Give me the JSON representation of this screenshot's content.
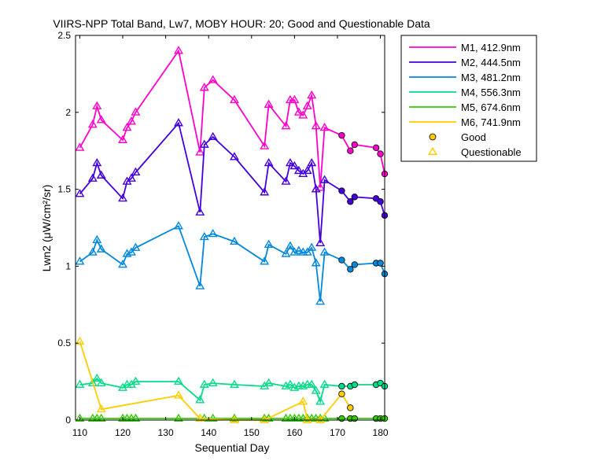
{
  "chart_data": {
    "type": "line",
    "title": "VIIRS-NPP Total Band, Lw7, MOBY HOUR: 20;  Good and Questionable Data",
    "xlabel": "Sequential Day",
    "ylabel": "Lwn2 (μW/cm²/sr)",
    "xlim": [
      109,
      181
    ],
    "ylim": [
      0,
      2.5
    ],
    "xticks": [
      110,
      120,
      130,
      140,
      150,
      160,
      170,
      180
    ],
    "yticks": [
      0,
      0.5,
      1,
      1.5,
      2,
      2.5
    ],
    "ytick_labels": [
      "0",
      "0.5",
      "1",
      "1.5",
      "2",
      "2.5"
    ],
    "grid": false,
    "legend": "outside-right",
    "marker_legend": [
      {
        "label": "Good",
        "marker": "circle"
      },
      {
        "label": "Questionable",
        "marker": "triangle"
      }
    ],
    "series": [
      {
        "name": "M1, 412.9nm",
        "color": "#ff00cc",
        "q": [
          [
            110,
            1.77
          ],
          [
            113,
            1.92
          ],
          [
            114,
            2.04
          ],
          [
            115,
            1.95
          ],
          [
            120,
            1.82
          ],
          [
            121,
            1.9
          ],
          [
            122,
            1.94
          ],
          [
            123,
            2.0
          ],
          [
            133,
            2.4
          ],
          [
            138,
            1.74
          ],
          [
            139,
            2.16
          ],
          [
            141,
            2.21
          ],
          [
            146,
            2.08
          ],
          [
            153,
            1.78
          ],
          [
            154,
            2.05
          ],
          [
            158,
            1.91
          ],
          [
            159,
            2.08
          ],
          [
            160,
            2.08
          ],
          [
            161,
            2.0
          ],
          [
            162,
            1.98
          ],
          [
            163,
            2.04
          ],
          [
            164,
            2.11
          ],
          [
            165,
            1.91
          ],
          [
            166,
            1.51
          ],
          [
            167,
            1.9
          ]
        ],
        "g": [
          [
            171,
            1.85
          ],
          [
            173,
            1.75
          ],
          [
            174,
            1.79
          ],
          [
            179,
            1.77
          ],
          [
            180,
            1.73
          ],
          [
            181,
            1.6
          ]
        ]
      },
      {
        "name": "M2, 444.5nm",
        "color": "#4400dd",
        "q": [
          [
            110,
            1.47
          ],
          [
            113,
            1.57
          ],
          [
            114,
            1.67
          ],
          [
            115,
            1.59
          ],
          [
            120,
            1.44
          ],
          [
            121,
            1.55
          ],
          [
            122,
            1.57
          ],
          [
            123,
            1.61
          ],
          [
            133,
            1.93
          ],
          [
            138,
            1.35
          ],
          [
            139,
            1.79
          ],
          [
            141,
            1.84
          ],
          [
            146,
            1.71
          ],
          [
            153,
            1.48
          ],
          [
            154,
            1.67
          ],
          [
            158,
            1.55
          ],
          [
            159,
            1.67
          ],
          [
            160,
            1.65
          ],
          [
            161,
            1.62
          ],
          [
            162,
            1.6
          ],
          [
            163,
            1.62
          ],
          [
            164,
            1.67
          ],
          [
            165,
            1.5
          ],
          [
            166,
            1.15
          ],
          [
            167,
            1.56
          ]
        ],
        "g": [
          [
            171,
            1.49
          ],
          [
            173,
            1.42
          ],
          [
            174,
            1.45
          ],
          [
            179,
            1.44
          ],
          [
            180,
            1.42
          ],
          [
            181,
            1.33
          ]
        ]
      },
      {
        "name": "M3, 481.2nm",
        "color": "#0088dd",
        "q": [
          [
            110,
            1.03
          ],
          [
            113,
            1.09
          ],
          [
            114,
            1.17
          ],
          [
            115,
            1.11
          ],
          [
            120,
            1.01
          ],
          [
            121,
            1.08
          ],
          [
            122,
            1.09
          ],
          [
            123,
            1.12
          ],
          [
            133,
            1.26
          ],
          [
            138,
            0.87
          ],
          [
            139,
            1.19
          ],
          [
            141,
            1.21
          ],
          [
            146,
            1.16
          ],
          [
            153,
            1.03
          ],
          [
            154,
            1.14
          ],
          [
            158,
            1.08
          ],
          [
            159,
            1.13
          ],
          [
            160,
            1.09
          ],
          [
            161,
            1.1
          ],
          [
            162,
            1.09
          ],
          [
            163,
            1.09
          ],
          [
            164,
            1.12
          ],
          [
            165,
            1.02
          ],
          [
            166,
            0.77
          ],
          [
            167,
            1.09
          ]
        ],
        "g": [
          [
            171,
            1.04
          ],
          [
            173,
            0.98
          ],
          [
            174,
            1.01
          ],
          [
            179,
            1.02
          ],
          [
            180,
            1.02
          ],
          [
            181,
            0.95
          ]
        ]
      },
      {
        "name": "M4, 556.3nm",
        "color": "#00dd88",
        "q": [
          [
            110,
            0.23
          ],
          [
            113,
            0.24
          ],
          [
            114,
            0.27
          ],
          [
            115,
            0.24
          ],
          [
            120,
            0.21
          ],
          [
            121,
            0.23
          ],
          [
            122,
            0.23
          ],
          [
            123,
            0.25
          ],
          [
            133,
            0.25
          ],
          [
            138,
            0.13
          ],
          [
            139,
            0.23
          ],
          [
            141,
            0.24
          ],
          [
            146,
            0.23
          ],
          [
            153,
            0.22
          ],
          [
            154,
            0.24
          ],
          [
            158,
            0.22
          ],
          [
            159,
            0.23
          ],
          [
            160,
            0.21
          ],
          [
            161,
            0.22
          ],
          [
            162,
            0.22
          ],
          [
            163,
            0.23
          ],
          [
            164,
            0.23
          ],
          [
            165,
            0.19
          ],
          [
            166,
            0.12
          ],
          [
            167,
            0.23
          ]
        ],
        "g": [
          [
            171,
            0.22
          ],
          [
            173,
            0.22
          ],
          [
            174,
            0.23
          ],
          [
            179,
            0.23
          ],
          [
            180,
            0.24
          ],
          [
            181,
            0.22
          ]
        ]
      },
      {
        "name": "M5, 674.6nm",
        "color": "#33cc00",
        "q": [
          [
            110,
            0.01
          ],
          [
            113,
            0.01
          ],
          [
            114,
            0.01
          ],
          [
            115,
            0.01
          ],
          [
            120,
            0.01
          ],
          [
            121,
            0.01
          ],
          [
            122,
            0.01
          ],
          [
            123,
            0.01
          ],
          [
            133,
            0.01
          ],
          [
            138,
            0.01
          ],
          [
            139,
            0.01
          ],
          [
            141,
            0.01
          ],
          [
            146,
            0.01
          ],
          [
            153,
            0.01
          ],
          [
            154,
            0.01
          ],
          [
            158,
            0.01
          ],
          [
            159,
            0.01
          ],
          [
            160,
            0.01
          ],
          [
            161,
            0.01
          ],
          [
            162,
            0.01
          ],
          [
            163,
            0.01
          ],
          [
            164,
            0.01
          ],
          [
            165,
            0.01
          ],
          [
            166,
            0.01
          ],
          [
            167,
            0.01
          ]
        ],
        "g": [
          [
            171,
            0.01
          ],
          [
            173,
            0.01
          ],
          [
            174,
            0.01
          ],
          [
            179,
            0.01
          ],
          [
            180,
            0.01
          ],
          [
            181,
            0.01
          ]
        ]
      },
      {
        "name": "M6, 741.9nm",
        "color": "#ffcc00",
        "q": [
          [
            110,
            0.51
          ],
          [
            115,
            0.07
          ],
          [
            133,
            0.16
          ],
          [
            138,
            0.01
          ],
          [
            146,
            0.0
          ],
          [
            153,
            0.0
          ],
          [
            162,
            0.12
          ],
          [
            163,
            0.0
          ],
          [
            166,
            0.0
          ]
        ],
        "g": [
          [
            171,
            0.17
          ],
          [
            173,
            0.08
          ]
        ]
      }
    ]
  }
}
